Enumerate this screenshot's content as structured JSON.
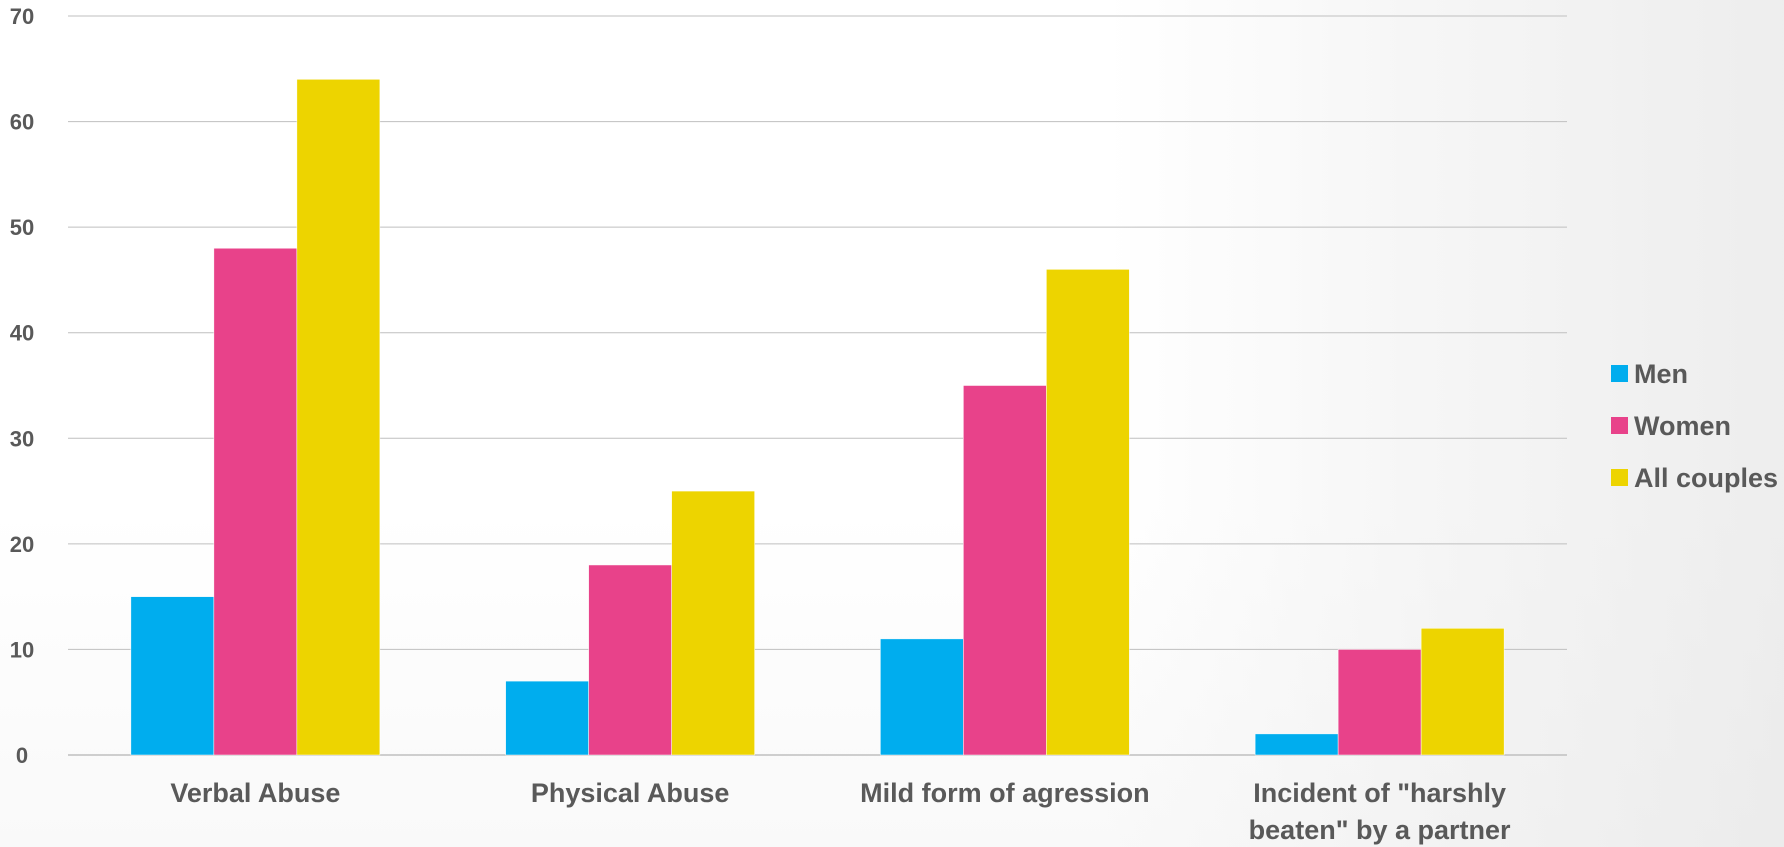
{
  "chart_data": {
    "type": "bar",
    "categories": [
      "Verbal Abuse",
      "Physical Abuse",
      "Mild form of agression",
      "Incident of \"harshly beaten\" by a partner"
    ],
    "category_lines": [
      [
        "Verbal Abuse"
      ],
      [
        "Physical Abuse"
      ],
      [
        "Mild form of agression"
      ],
      [
        "Incident of \"harshly",
        "beaten\" by a partner"
      ]
    ],
    "series": [
      {
        "name": "Men",
        "color": "#00ADEE",
        "values": [
          15,
          7,
          11,
          2
        ]
      },
      {
        "name": "Women",
        "color": "#E8428A",
        "values": [
          48,
          18,
          35,
          10
        ]
      },
      {
        "name": "All couples",
        "color": "#EDD400",
        "values": [
          64,
          25,
          46,
          12
        ]
      }
    ],
    "ylim": [
      0,
      70
    ],
    "yticks": [
      "0",
      "10",
      "20",
      "30",
      "40",
      "50",
      "60",
      "70"
    ],
    "grid": true,
    "legend_position": "right",
    "title": "",
    "xlabel": "",
    "ylabel": ""
  }
}
